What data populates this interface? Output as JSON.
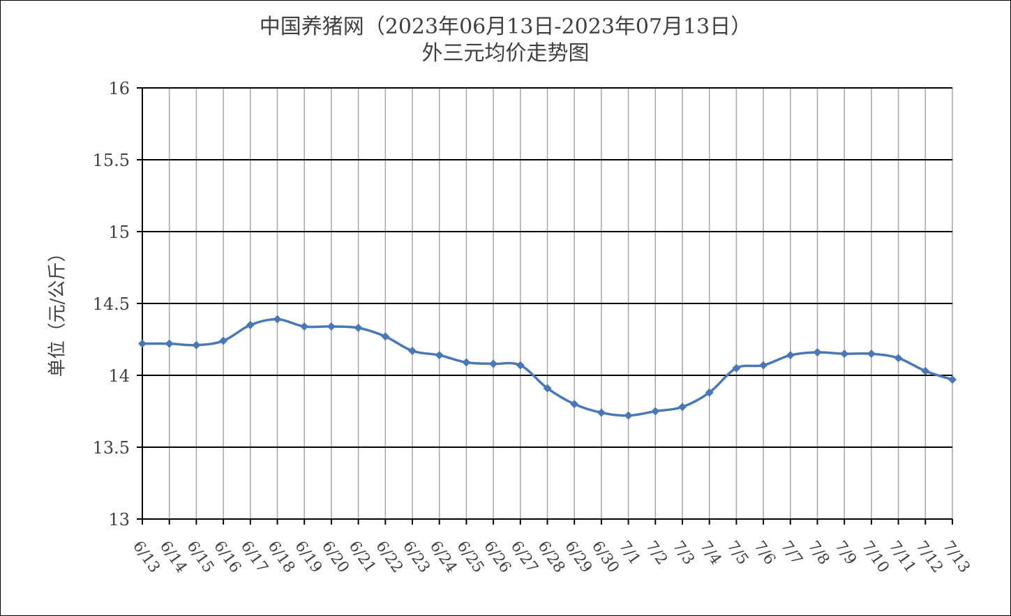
{
  "chart_data": {
    "type": "line",
    "title": [
      "中国养猪网（2023年06月13日-2023年07月13日）",
      "外三元均价走势图"
    ],
    "ylabel": "单位（元/公斤）",
    "xlabel": "",
    "ylim": [
      13,
      16
    ],
    "ytick_step": 0.5,
    "yticks": [
      "16",
      "15.5",
      "15",
      "14.5",
      "14",
      "13.5",
      "13"
    ],
    "grid": true,
    "legend": "none",
    "categories": [
      "6/13",
      "6/14",
      "6/15",
      "6/16",
      "6/17",
      "6/18",
      "6/19",
      "6/20",
      "6/21",
      "6/22",
      "6/23",
      "6/24",
      "6/25",
      "6/26",
      "6/27",
      "6/28",
      "6/29",
      "6/30",
      "7/1",
      "7/2",
      "7/3",
      "7/4",
      "7/5",
      "7/6",
      "7/7",
      "7/8",
      "7/9",
      "7/10",
      "7/11",
      "7/12",
      "7/13"
    ],
    "series": [
      {
        "values": [
          14.22,
          14.22,
          14.21,
          14.24,
          14.35,
          14.39,
          14.34,
          14.34,
          14.33,
          14.27,
          14.17,
          14.14,
          14.09,
          14.08,
          14.07,
          13.91,
          13.8,
          13.74,
          13.72,
          13.75,
          13.78,
          13.88,
          14.05,
          14.07,
          14.14,
          14.16,
          14.15,
          14.15,
          14.12,
          14.03,
          13.97
        ],
        "color": "#4a78b6"
      }
    ]
  }
}
